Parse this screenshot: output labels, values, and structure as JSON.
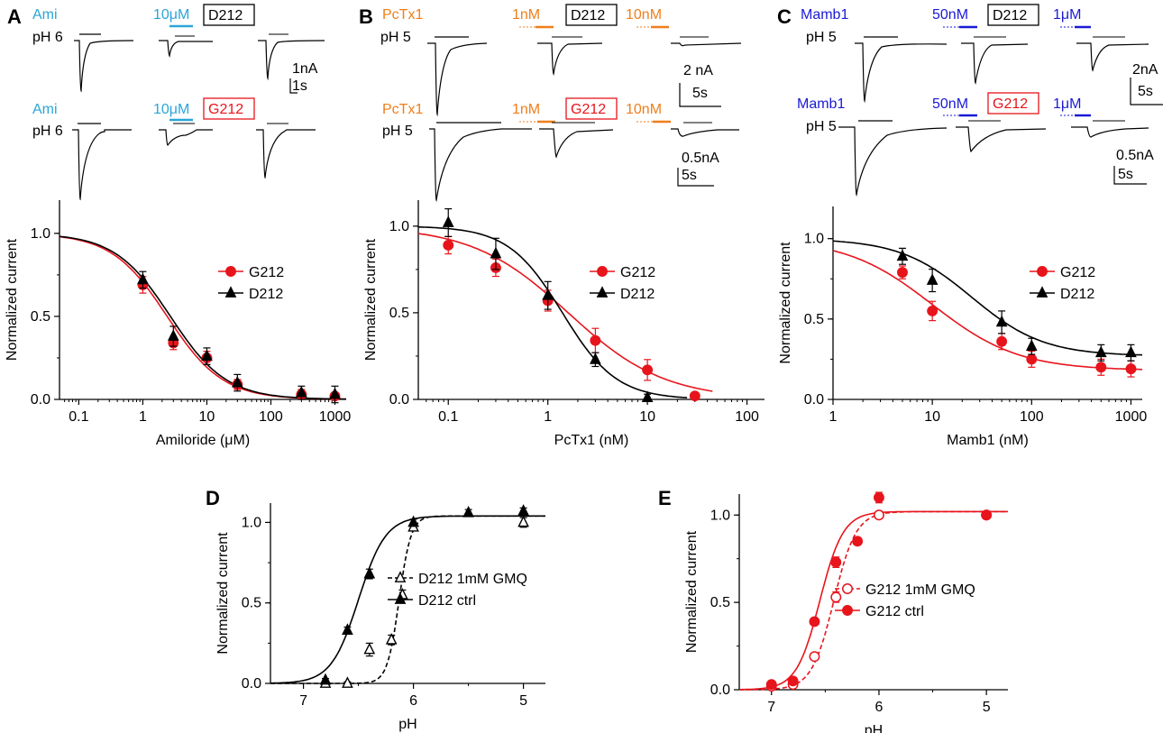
{
  "figure": {
    "panels": {
      "A": {
        "letter": "A",
        "top_drug": "Ami",
        "top_ph": "pH 6",
        "top_conc": "10μM",
        "top_box": "D212",
        "top_scale_amp": "1nA",
        "top_scale_time": "1s",
        "bottom_drug": "Ami",
        "bottom_ph": "pH 6",
        "bottom_conc": "10μM",
        "bottom_box": "G212",
        "drug_color": "#2aa6d6"
      },
      "B": {
        "letter": "B",
        "top_drug": "PcTx1",
        "top_ph": "pH 5",
        "top_conc1": "1nM",
        "top_box": "D212",
        "top_conc2": "10nM",
        "top_scale_amp": "2 nA",
        "top_scale_time": "5s",
        "bottom_drug": "PcTx1",
        "bottom_ph": "pH 5",
        "bottom_conc1": "1nM",
        "bottom_box": "G212",
        "bottom_conc2": "10nM",
        "bottom_scale_amp": "0.5nA",
        "bottom_scale_time": "5s",
        "drug_color": "#f07e1a"
      },
      "C": {
        "letter": "C",
        "top_drug": "Mamb1",
        "top_ph": "pH 5",
        "top_conc1": "50nM",
        "top_box": "D212",
        "top_conc2": "1μM",
        "top_scale_amp": "2nA",
        "top_scale_time": "5s",
        "bottom_drug": "Mamb1",
        "bottom_ph": "pH 5",
        "bottom_conc1": "50nM",
        "bottom_box": "G212",
        "bottom_conc2": "1μM",
        "bottom_scale_amp": "0.5nA",
        "bottom_scale_time": "5s",
        "drug_color": "#1a1ad6"
      },
      "D": {
        "letter": "D"
      },
      "E": {
        "letter": "E"
      }
    },
    "colors": {
      "g212": "#e8141c",
      "d212": "#000000",
      "d212_box": "#000000",
      "g212_box": "#e8141c"
    }
  },
  "chart_data": [
    {
      "id": "A",
      "type": "scatter",
      "xscale": "log",
      "xlabel": "Amiloride (μM)",
      "ylabel": "Normalized current",
      "xlim": [
        0.05,
        1500
      ],
      "ylim": [
        0,
        1.2
      ],
      "xticks": [
        0.1,
        1,
        10,
        100,
        1000
      ],
      "xtick_labels": [
        "0.1",
        "1",
        "10",
        "100",
        "1000"
      ],
      "yticks": [
        0,
        0.5,
        1
      ],
      "ytick_labels": [
        "0.0",
        "0.5",
        "1.0"
      ],
      "legend": "right",
      "series": [
        {
          "name": "G212",
          "marker": "circle",
          "color": "#e8141c",
          "x": [
            1,
            3,
            10,
            30,
            300,
            1000
          ],
          "y": [
            0.69,
            0.34,
            0.25,
            0.09,
            0.03,
            0.02
          ],
          "err": [
            0.05,
            0.04,
            0.04,
            0.03,
            0.03,
            0.02
          ],
          "fit": {
            "ic50": 2.4,
            "hill": 1.0,
            "bottom": 0,
            "top": 1
          }
        },
        {
          "name": "D212",
          "marker": "triangle",
          "color": "#000000",
          "x": [
            1,
            3,
            10,
            30,
            300,
            1000
          ],
          "y": [
            0.72,
            0.38,
            0.26,
            0.1,
            0.04,
            0.03
          ],
          "err": [
            0.05,
            0.06,
            0.05,
            0.05,
            0.04,
            0.05
          ],
          "fit": {
            "ic50": 2.7,
            "hill": 1.0,
            "bottom": 0,
            "top": 1
          }
        }
      ]
    },
    {
      "id": "B",
      "type": "scatter",
      "xscale": "log",
      "xlabel": "PcTx1 (nM)",
      "ylabel": "Normalized current",
      "xlim": [
        0.05,
        150
      ],
      "ylim": [
        0,
        1.15
      ],
      "xticks": [
        0.1,
        1,
        10,
        100
      ],
      "xtick_labels": [
        "0.1",
        "1",
        "10",
        "100"
      ],
      "yticks": [
        0,
        0.5,
        1
      ],
      "ytick_labels": [
        "0.0",
        "0.5",
        "1.0"
      ],
      "legend": "right",
      "series": [
        {
          "name": "G212",
          "marker": "circle",
          "color": "#e8141c",
          "x": [
            0.1,
            0.3,
            1,
            3,
            10,
            30
          ],
          "y": [
            0.89,
            0.76,
            0.57,
            0.34,
            0.17,
            0.02
          ],
          "err": [
            0.05,
            0.05,
            0.06,
            0.07,
            0.06,
            0.02
          ],
          "fit": {
            "ic50": 1.6,
            "hill": 0.9,
            "bottom": 0,
            "top": 1.0,
            "xmax": 45
          }
        },
        {
          "name": "D212",
          "marker": "triangle",
          "color": "#000000",
          "x": [
            0.1,
            0.3,
            1,
            3,
            10
          ],
          "y": [
            1.02,
            0.84,
            0.6,
            0.23,
            0.01
          ],
          "err": [
            0.08,
            0.09,
            0.08,
            0.04,
            0.02
          ],
          "fit": {
            "ic50": 1.4,
            "hill": 1.6,
            "bottom": 0,
            "top": 1.0,
            "xmax": 25
          }
        }
      ]
    },
    {
      "id": "C",
      "type": "scatter",
      "xscale": "log",
      "xlabel": "Mamb1 (nM)",
      "ylabel": "Normalized current",
      "xlim": [
        1,
        1300
      ],
      "ylim": [
        0,
        1.2
      ],
      "xticks": [
        1,
        10,
        100,
        1000
      ],
      "xtick_labels": [
        "1",
        "10",
        "100",
        "1000"
      ],
      "yticks": [
        0,
        0.5,
        1
      ],
      "ytick_labels": [
        "0.0",
        "0.5",
        "1.0"
      ],
      "legend": "right",
      "series": [
        {
          "name": "G212",
          "marker": "circle",
          "color": "#e8141c",
          "x": [
            5,
            10,
            50,
            100,
            500,
            1000
          ],
          "y": [
            0.79,
            0.55,
            0.36,
            0.25,
            0.2,
            0.19
          ],
          "err": [
            0.04,
            0.06,
            0.05,
            0.05,
            0.05,
            0.05
          ],
          "fit": {
            "ic50": 10,
            "hill": 1.0,
            "bottom": 0.18,
            "top": 1.0
          }
        },
        {
          "name": "D212",
          "marker": "triangle",
          "color": "#000000",
          "x": [
            5,
            10,
            50,
            100,
            500,
            1000
          ],
          "y": [
            0.89,
            0.74,
            0.48,
            0.33,
            0.29,
            0.29
          ],
          "err": [
            0.05,
            0.07,
            0.07,
            0.05,
            0.05,
            0.05
          ],
          "fit": {
            "ic50": 25,
            "hill": 1.2,
            "bottom": 0.27,
            "top": 1.0
          }
        }
      ]
    },
    {
      "id": "D",
      "type": "scatter",
      "xscale": "linear-reversed",
      "xlabel": "pH",
      "ylabel": "Normalized current",
      "xlim": [
        7.3,
        4.8
      ],
      "ylim": [
        0,
        1.12
      ],
      "xticks": [
        7,
        6,
        5
      ],
      "xtick_labels": [
        "7",
        "6",
        "5"
      ],
      "yticks": [
        0,
        0.5,
        1
      ],
      "ytick_labels": [
        "0.0",
        "0.5",
        "1.0"
      ],
      "legend": "right",
      "series": [
        {
          "name": "D212 1mM GMQ",
          "marker": "triangle-open",
          "color": "#000000",
          "line": "dashed",
          "x": [
            6.8,
            6.6,
            6.4,
            6.2,
            6.1,
            6.0,
            5.0
          ],
          "y": [
            0.0,
            0.0,
            0.21,
            0.27,
            0.55,
            0.97,
            1.0
          ],
          "err": [
            0.01,
            0.01,
            0.04,
            0.03,
            0.03,
            0.02,
            0.03
          ],
          "fit": {
            "ph50": 6.13,
            "hill": 8.0,
            "top": 1.04,
            "bottom": 0
          }
        },
        {
          "name": "D212 ctrl",
          "marker": "triangle",
          "color": "#000000",
          "line": "solid",
          "x": [
            6.8,
            6.6,
            6.4,
            6.0,
            5.5,
            5.0
          ],
          "y": [
            0.02,
            0.33,
            0.68,
            1.0,
            1.06,
            1.07
          ],
          "err": [
            0.01,
            0.02,
            0.03,
            0.02,
            0.02,
            0.02
          ],
          "fit": {
            "ph50": 6.5,
            "hill": 3.5,
            "top": 1.04,
            "bottom": 0
          }
        }
      ]
    },
    {
      "id": "E",
      "type": "scatter",
      "xscale": "linear-reversed",
      "xlabel": "pH",
      "ylabel": "Normalized current",
      "xlim": [
        7.3,
        4.8
      ],
      "ylim": [
        0,
        1.12
      ],
      "xticks": [
        7,
        6,
        5
      ],
      "xtick_labels": [
        "7",
        "6",
        "5"
      ],
      "yticks": [
        0,
        0.5,
        1
      ],
      "ytick_labels": [
        "0.0",
        "0.5",
        "1.0"
      ],
      "legend": "right",
      "series": [
        {
          "name": "G212 1mM GMQ",
          "marker": "circle-open",
          "color": "#e8141c",
          "line": "dashed",
          "x": [
            7.0,
            6.8,
            6.6,
            6.4,
            6.0,
            5.0
          ],
          "y": [
            0.02,
            0.03,
            0.19,
            0.53,
            1.0,
            1.0
          ],
          "err": [
            0.01,
            0.01,
            0.02,
            0.03,
            0.02,
            0.02
          ],
          "fit": {
            "ph50": 6.42,
            "hill": 4.2,
            "top": 1.02,
            "bottom": 0
          }
        },
        {
          "name": "G212 ctrl",
          "marker": "circle",
          "color": "#e8141c",
          "line": "solid",
          "x": [
            7.0,
            6.8,
            6.6,
            6.4,
            6.2,
            6.0,
            5.0
          ],
          "y": [
            0.03,
            0.05,
            0.39,
            0.73,
            0.85,
            1.1,
            1.0
          ],
          "err": [
            0.01,
            0.02,
            0.02,
            0.03,
            0.02,
            0.03,
            0.02
          ],
          "fit": {
            "ph50": 6.55,
            "hill": 4.0,
            "top": 1.02,
            "bottom": 0
          }
        }
      ]
    }
  ]
}
